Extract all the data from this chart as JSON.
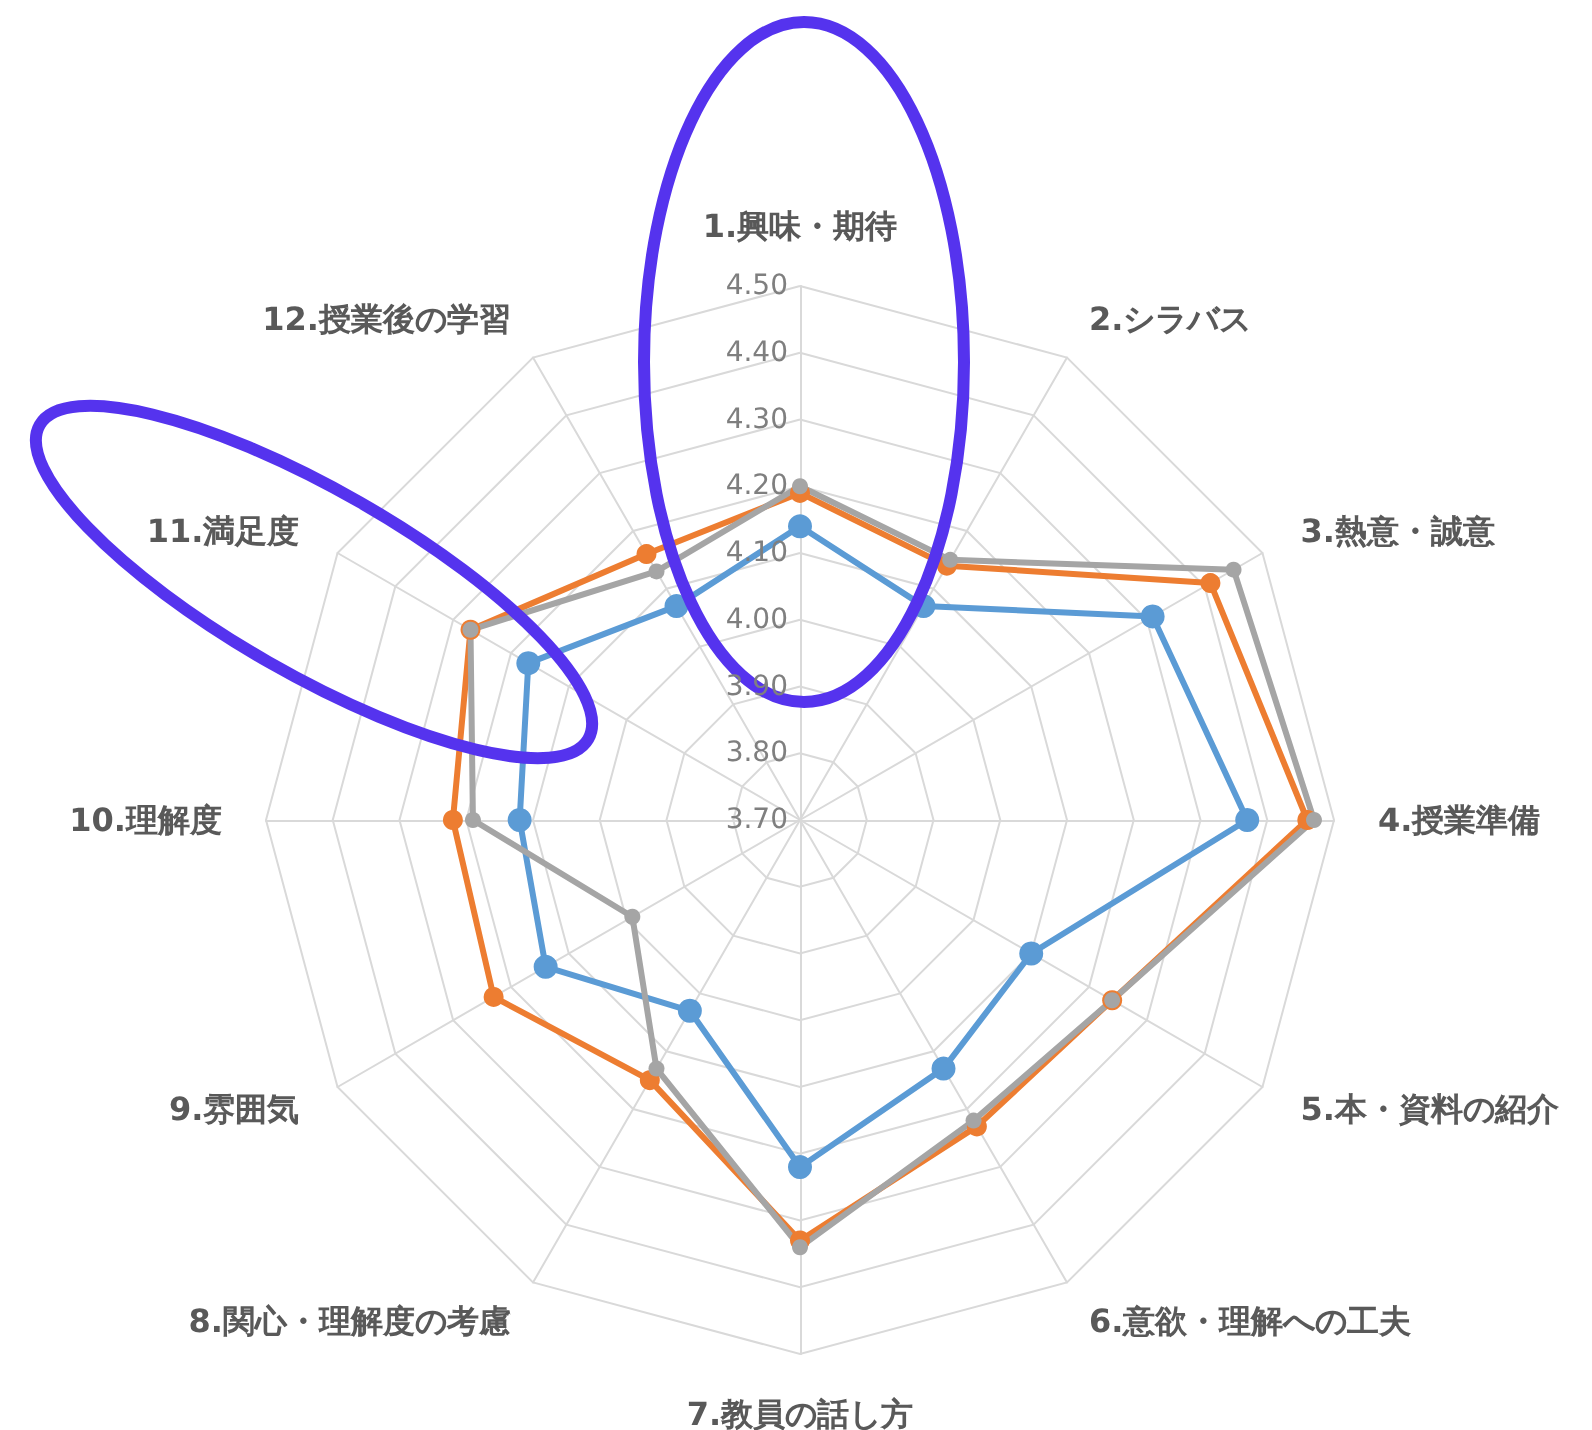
{
  "chart_data": {
    "type": "radar",
    "categories": [
      "1.興味・期待",
      "2.シラバス",
      "3.熱意・誠意",
      "4.授業準備",
      "5.本・資料の紹介",
      "6.意欲・理解への工夫",
      "7.教員の話し方",
      "8.関心・理解度の考慮",
      "9.雰囲気",
      "10.理解度",
      "11.満足度",
      "12.授業後の学習"
    ],
    "series": [
      {
        "color": "#5b9bd5",
        "values": [
          4.14,
          4.07,
          4.31,
          4.37,
          4.1,
          4.13,
          4.22,
          4.03,
          4.14,
          4.12,
          4.17,
          4.07
        ]
      },
      {
        "color": "#ed7d31",
        "values": [
          4.19,
          4.14,
          4.41,
          4.46,
          4.24,
          4.23,
          4.33,
          4.15,
          4.23,
          4.22,
          4.27,
          4.16
        ]
      },
      {
        "color": "#a5a5a5",
        "values": [
          4.2,
          4.15,
          4.45,
          4.47,
          4.24,
          4.22,
          4.34,
          4.13,
          3.99,
          4.19,
          4.27,
          4.13
        ]
      }
    ],
    "ylim": [
      3.7,
      4.5
    ],
    "yticks": [
      {
        "value": 3.7,
        "label": "3.70"
      },
      {
        "value": 3.8,
        "label": "3.80"
      },
      {
        "value": 3.9,
        "label": "3.90"
      },
      {
        "value": 4.0,
        "label": "4.00"
      },
      {
        "value": 4.1,
        "label": "4.10"
      },
      {
        "value": 4.2,
        "label": "4.20"
      },
      {
        "value": 4.3,
        "label": "4.30"
      },
      {
        "value": 4.4,
        "label": "4.40"
      },
      {
        "value": 4.5,
        "label": "4.50"
      }
    ],
    "marker": "circle"
  }
}
